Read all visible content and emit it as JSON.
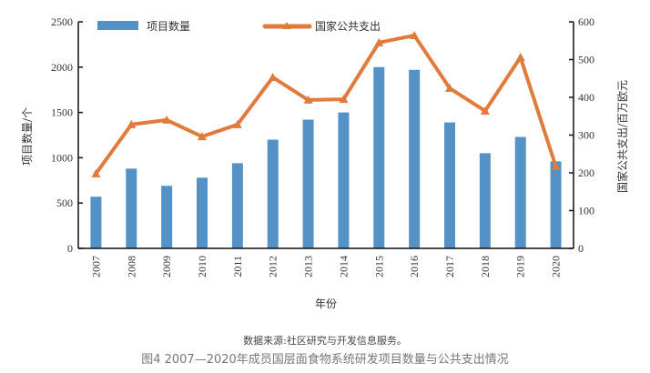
{
  "chart_data": {
    "type": "bar+line",
    "categories": [
      "2007",
      "2008",
      "2009",
      "2010",
      "2011",
      "2012",
      "2013",
      "2014",
      "2015",
      "2016",
      "2017",
      "2018",
      "2019",
      "2020"
    ],
    "series": [
      {
        "name": "项目数量",
        "type": "bar",
        "axis": "left",
        "color": "#5491c6",
        "values": [
          570,
          880,
          690,
          780,
          940,
          1200,
          1420,
          1500,
          2000,
          1970,
          1390,
          1050,
          1230,
          960
        ]
      },
      {
        "name": "国家公共支出",
        "type": "line",
        "axis": "right",
        "color": "#e07b3c",
        "marker": "triangle",
        "values": [
          198,
          328,
          340,
          296,
          328,
          453,
          393,
          395,
          545,
          564,
          424,
          364,
          506,
          217
        ]
      }
    ],
    "xlabel": "年份",
    "ylabel": "项目数量/个",
    "y2label": "国家公共支出/百万欧元",
    "ylim": [
      0,
      2500
    ],
    "y2lim": [
      0,
      600
    ],
    "yticks": [
      "0",
      "500",
      "1000",
      "1500",
      "2000",
      "2500"
    ],
    "y2ticks": [
      "0",
      "100",
      "200",
      "300",
      "400",
      "500",
      "600"
    ],
    "grid": false,
    "legend": "top"
  },
  "source": "数据来源:社区研究与开发信息服务。",
  "caption": "图4 2007—2020年成员国层面食物系统研发项目数量与公共支出情况"
}
